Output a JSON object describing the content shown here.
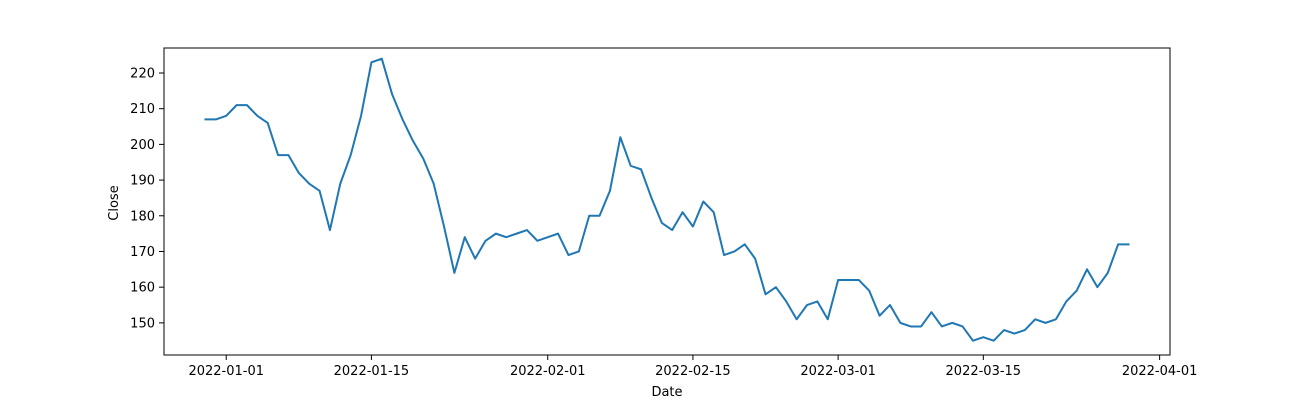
{
  "chart_data": {
    "type": "line",
    "title": "",
    "xlabel": "Date",
    "ylabel": "Close",
    "grid": false,
    "xlim": [
      "2021-12-26",
      "2022-04-02"
    ],
    "ylim": [
      141.0,
      227.0
    ],
    "x_ticks": [
      "2022-01-01",
      "2022-01-15",
      "2022-02-01",
      "2022-02-15",
      "2022-03-01",
      "2022-03-15",
      "2022-04-01"
    ],
    "y_ticks": [
      150,
      160,
      170,
      180,
      190,
      200,
      210,
      220
    ],
    "line_color": "#1f77b4",
    "series": [
      {
        "x": [
          "2021-12-30",
          "2021-12-31",
          "2022-01-01",
          "2022-01-02",
          "2022-01-03",
          "2022-01-04",
          "2022-01-05",
          "2022-01-06",
          "2022-01-07",
          "2022-01-08",
          "2022-01-09",
          "2022-01-10",
          "2022-01-11",
          "2022-01-12",
          "2022-01-13",
          "2022-01-14",
          "2022-01-15",
          "2022-01-16",
          "2022-01-17",
          "2022-01-18",
          "2022-01-19",
          "2022-01-20",
          "2022-01-21",
          "2022-01-22",
          "2022-01-23",
          "2022-01-24",
          "2022-01-25",
          "2022-01-26",
          "2022-01-27",
          "2022-01-28",
          "2022-01-29",
          "2022-01-30",
          "2022-01-31",
          "2022-02-01",
          "2022-02-02",
          "2022-02-03",
          "2022-02-04",
          "2022-02-05",
          "2022-02-06",
          "2022-02-07",
          "2022-02-08",
          "2022-02-09",
          "2022-02-10",
          "2022-02-11",
          "2022-02-12",
          "2022-02-13",
          "2022-02-14",
          "2022-02-15",
          "2022-02-16",
          "2022-02-17",
          "2022-02-18",
          "2022-02-19",
          "2022-02-20",
          "2022-02-21",
          "2022-02-22",
          "2022-02-23",
          "2022-02-24",
          "2022-02-25",
          "2022-02-26",
          "2022-02-27",
          "2022-02-28",
          "2022-03-01",
          "2022-03-02",
          "2022-03-03",
          "2022-03-04",
          "2022-03-05",
          "2022-03-06",
          "2022-03-07",
          "2022-03-08",
          "2022-03-09",
          "2022-03-10",
          "2022-03-11",
          "2022-03-12",
          "2022-03-13",
          "2022-03-14",
          "2022-03-15",
          "2022-03-16",
          "2022-03-17",
          "2022-03-18",
          "2022-03-19",
          "2022-03-20",
          "2022-03-21",
          "2022-03-22",
          "2022-03-23",
          "2022-03-24",
          "2022-03-25",
          "2022-03-26",
          "2022-03-27",
          "2022-03-28",
          "2022-03-29"
        ],
        "y": [
          207,
          207,
          208,
          211,
          211,
          208,
          206,
          197,
          197,
          192,
          189,
          187,
          176,
          189,
          197,
          208,
          223,
          224,
          214,
          207,
          201,
          196,
          189,
          177,
          164,
          174,
          168,
          173,
          175,
          174,
          175,
          176,
          173,
          174,
          175,
          169,
          170,
          180,
          180,
          187,
          202,
          194,
          193,
          185,
          178,
          176,
          181,
          177,
          184,
          181,
          169,
          170,
          172,
          168,
          158,
          160,
          156,
          151,
          155,
          156,
          151,
          162,
          162,
          162,
          159,
          152,
          155,
          150,
          149,
          149,
          153,
          149,
          150,
          149,
          145,
          146,
          145,
          148,
          147,
          148,
          151,
          150,
          151,
          156,
          159,
          165,
          160,
          164,
          172,
          172
        ]
      }
    ]
  }
}
